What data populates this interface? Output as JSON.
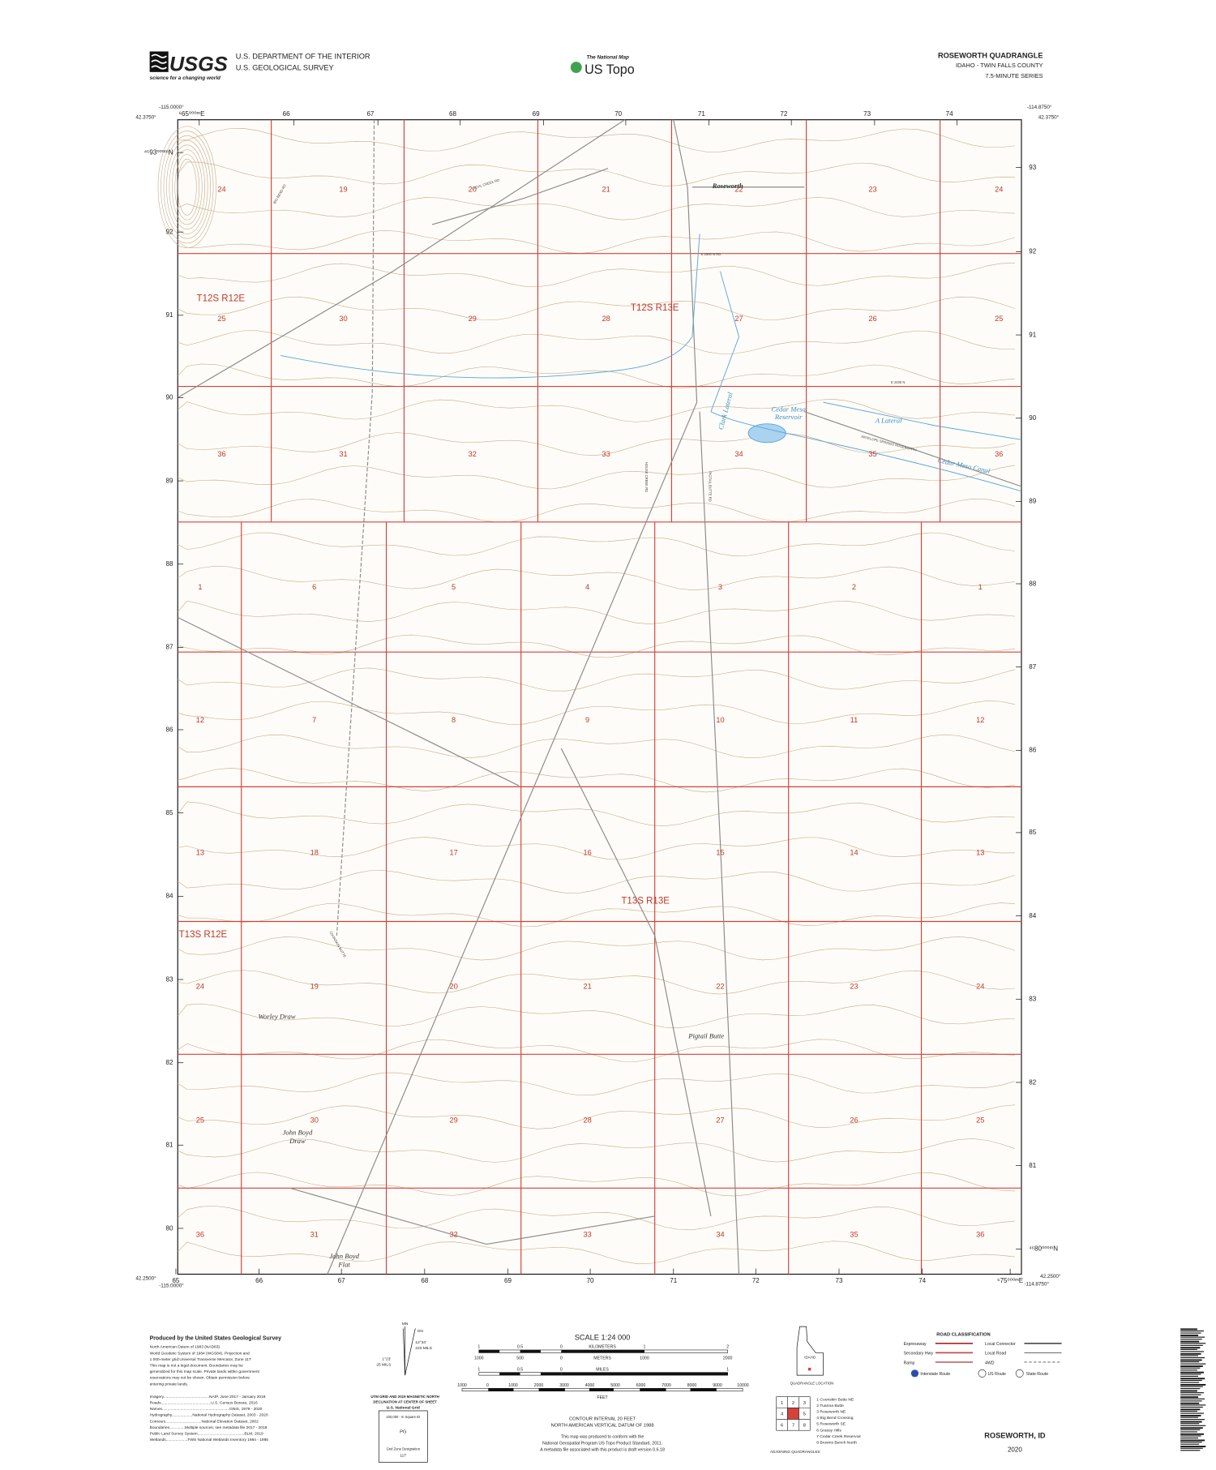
{
  "header": {
    "logo": "USGS",
    "tagline": "science for a changing world",
    "agency_line1": "U.S. DEPARTMENT OF THE INTERIOR",
    "agency_line2": "U.S. GEOLOGICAL SURVEY",
    "national_map": "The National Map",
    "us_topo": "US Topo",
    "quad_title": "ROSEWORTH QUADRANGLE",
    "quad_state_county": "IDAHO - TWIN FALLS COUNTY",
    "quad_series": "7.5-MINUTE SERIES"
  },
  "corners": {
    "top_left_lon": "-115.0000°",
    "top_left_lat": "42.3750°",
    "top_right_lon": "-114.8750°",
    "top_right_lat": "42.3750°",
    "bottom_left_lat": "42.2500°",
    "bottom_left_lon": "-115.0000°",
    "bottom_right_lon": "-114.8750°",
    "bottom_right_lat": "42.2500°"
  },
  "grid_labels": {
    "top": [
      "⁶65⁰⁰⁰ᵐE",
      "66",
      "67",
      "68",
      "69",
      "70",
      "71",
      "72",
      "73",
      "74"
    ],
    "bottom": [
      "65",
      "66",
      "67",
      "68",
      "69",
      "70",
      "71",
      "72",
      "73",
      "74",
      "⁶75⁰⁰⁰ᵐE"
    ],
    "left": [
      "⁴⁶93⁰⁰⁰ᵐN",
      "92",
      "91",
      "90",
      "89",
      "88",
      "87",
      "86",
      "85",
      "84",
      "83",
      "82",
      "81",
      "80"
    ],
    "right": [
      "93",
      "92",
      "91",
      "90",
      "89",
      "88",
      "87",
      "86",
      "85",
      "84",
      "83",
      "82",
      "81",
      "⁴⁶80⁰⁰⁰ᵐN"
    ]
  },
  "townships": [
    "T12S R12E",
    "T12S R13E",
    "T13S R13E",
    "T13S R12E"
  ],
  "sections": {
    "upper": [
      [
        24,
        19,
        20,
        21,
        22,
        23,
        24
      ],
      [
        25,
        30,
        29,
        28,
        27,
        26,
        25
      ],
      [
        36,
        31,
        32,
        33,
        34,
        35,
        36
      ]
    ],
    "lower": [
      [
        1,
        6,
        5,
        4,
        3,
        2,
        1
      ],
      [
        12,
        7,
        8,
        9,
        10,
        11,
        12
      ],
      [
        13,
        18,
        17,
        16,
        15,
        14,
        13
      ],
      [
        24,
        19,
        20,
        21,
        22,
        23,
        24
      ],
      [
        25,
        30,
        29,
        28,
        27,
        26,
        25
      ],
      [
        36,
        31,
        32,
        33,
        34,
        35,
        36
      ]
    ]
  },
  "places": [
    "Roseworth",
    "Clark Lateral",
    "Cedar Mesa",
    "Reservoir",
    "A Lateral",
    "Cedar Mesa Canal",
    "Worley Draw",
    "Pigtail Butte",
    "John Boyd",
    "Draw",
    "John Boyd",
    "Flat"
  ],
  "road_labels": [
    "E 2500 N RD",
    "E 2400 N",
    "DEVIL CREEK RD",
    "BIG BEND RD",
    "HOUSE CREEK RD",
    "PIGTAIL BUTTE RD",
    "ANTELOPE SPRINGS ROSEWORTH",
    "COONSKIN BUTTE"
  ],
  "footer": {
    "produced_by": "Produced by the United States Geological Survey",
    "notes": [
      "North American Datum of 1983 (NAD83)",
      "World Geodetic System of 1984 (WGS84). Projection and",
      "1 000-meter grid:Universal Transverse Mercator, Zone 11T",
      "This map is not a legal document. Boundaries may be",
      "generalized for this map scale. Private lands within government",
      "reservations may not be shown. Obtain permission before",
      "entering private lands."
    ],
    "credits": [
      "Imagery..........................................NAIP, June 2017 - January 2018",
      "Roads..............................................U.S. Census Bureau, 2016",
      "Names..............................................................GNIS, 1979 - 2020",
      "Hydrography...................National Hydrography Dataset, 2003 - 2020",
      "Contours.................................National Elevation Dataset, 2002",
      "Boundaries..............Multiple sources; see metadata file 2017 - 2018",
      "Public Land Survey System...........................................BLM, 2019",
      "Wetlands....................FWS National Wetlands Inventory 1984 - 1985"
    ],
    "declination": [
      "MN",
      "GN",
      "12°34'",
      "223 MILS",
      "1°23'",
      "25 MILS",
      "UTM GRID AND 2019 MAGNETIC NORTH",
      "DECLINATION AT CENTER OF SHEET"
    ],
    "usng": [
      "U.S. National Grid",
      "100,000 - m Square ID",
      "PG",
      "Grid Zone Designation",
      "11T"
    ],
    "scale_title": "SCALE 1:24 000",
    "km_labels": [
      "1",
      "0.5",
      "0",
      "KILOMETERS",
      "1",
      "2"
    ],
    "m_labels": [
      "1000",
      "500",
      "0",
      "METERS",
      "1000",
      "2000"
    ],
    "mile_labels": [
      "1",
      "0.5",
      "0",
      "MILES",
      "1"
    ],
    "feet_labels": [
      "1000",
      "0",
      "1000",
      "2000",
      "3000",
      "4000",
      "5000",
      "6000",
      "7000",
      "8000",
      "9000",
      "10000"
    ],
    "feet_title": "FEET",
    "contour_notes": [
      "CONTOUR INTERVAL 20 FEET",
      "NORTH AMERICAN VERTICAL DATUM OF 1988"
    ],
    "standard_notes": [
      "This map was produced to conform with the",
      "National Geospatial Program US Topo Product Standard, 2011.",
      "A metadata file associated with this product is draft version 0.6.18"
    ],
    "location": [
      "IDAHO",
      "QUADRANGLE LOCATION"
    ],
    "adjoining_cells": [
      1,
      2,
      3,
      4,
      5,
      6,
      7,
      8
    ],
    "adjoining_list": [
      "1 Coonskin Butte NE",
      "2 Tuanna Butte",
      "3 Roseworth NE",
      "4 Big Bend Crossing",
      "5 Roseworth SE",
      "6 Grassy Hills",
      "7 Cedar Creek Reservoir",
      "8 Browns Bench North"
    ],
    "adjoining_title": "ADJOINING QUADRANGLES",
    "road_title": "ROAD CLASSIFICATION",
    "road_types": [
      "Expressway",
      "Secondary Hwy",
      "Ramp",
      "Local Connector",
      "Local Road",
      "4WD"
    ],
    "route_types": [
      "Interstate Route",
      "US Route",
      "State Route"
    ],
    "sheet_name": "ROSEWORTH, ID",
    "sheet_year": "2020"
  }
}
